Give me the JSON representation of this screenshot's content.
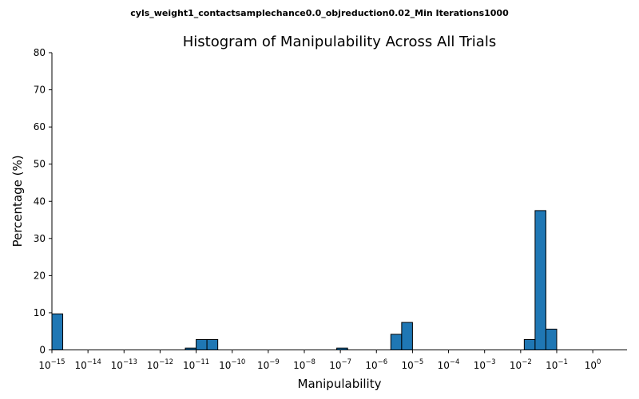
{
  "suptitle": "cyls_weight1_contactsamplechance0.0_objreduction0.02_Min Iterations1000",
  "chart_data": {
    "type": "bar",
    "title": "Histogram of Manipulability Across All Trials",
    "xlabel": "Manipulability",
    "ylabel": "Percentage (%)",
    "xscale": "log",
    "xlim_log10": [
      -15,
      0.95
    ],
    "ylim": [
      0,
      80
    ],
    "y_ticks": [
      0,
      10,
      20,
      30,
      40,
      50,
      60,
      70,
      80
    ],
    "x_ticks": [
      {
        "base": "10",
        "exp": "−15",
        "log10": -15
      },
      {
        "base": "10",
        "exp": "−14",
        "log10": -14
      },
      {
        "base": "10",
        "exp": "−13",
        "log10": -13
      },
      {
        "base": "10",
        "exp": "−12",
        "log10": -12
      },
      {
        "base": "10",
        "exp": "−11",
        "log10": -11
      },
      {
        "base": "10",
        "exp": "−10",
        "log10": -10
      },
      {
        "base": "10",
        "exp": "−9",
        "log10": -9
      },
      {
        "base": "10",
        "exp": "−8",
        "log10": -8
      },
      {
        "base": "10",
        "exp": "−7",
        "log10": -7
      },
      {
        "base": "10",
        "exp": "−6",
        "log10": -6
      },
      {
        "base": "10",
        "exp": "−5",
        "log10": -5
      },
      {
        "base": "10",
        "exp": "−4",
        "log10": -4
      },
      {
        "base": "10",
        "exp": "−3",
        "log10": -3
      },
      {
        "base": "10",
        "exp": "−2",
        "log10": -2
      },
      {
        "base": "10",
        "exp": "−1",
        "log10": -1
      },
      {
        "base": "10",
        "exp": "0",
        "log10": 0
      }
    ],
    "bin_width_log10": 0.3,
    "bars": [
      {
        "left_log10": -15.0,
        "value": 9.7
      },
      {
        "left_log10": -11.3,
        "value": 0.5
      },
      {
        "left_log10": -11.0,
        "value": 2.8
      },
      {
        "left_log10": -10.7,
        "value": 2.8
      },
      {
        "left_log10": -7.1,
        "value": 0.5
      },
      {
        "left_log10": -5.6,
        "value": 4.2
      },
      {
        "left_log10": -5.3,
        "value": 7.4
      },
      {
        "left_log10": -1.9,
        "value": 2.8
      },
      {
        "left_log10": -1.6,
        "value": 37.5
      },
      {
        "left_log10": -1.3,
        "value": 5.6
      }
    ],
    "bar_color": "#1f77b4",
    "edge_color": "#000000"
  }
}
